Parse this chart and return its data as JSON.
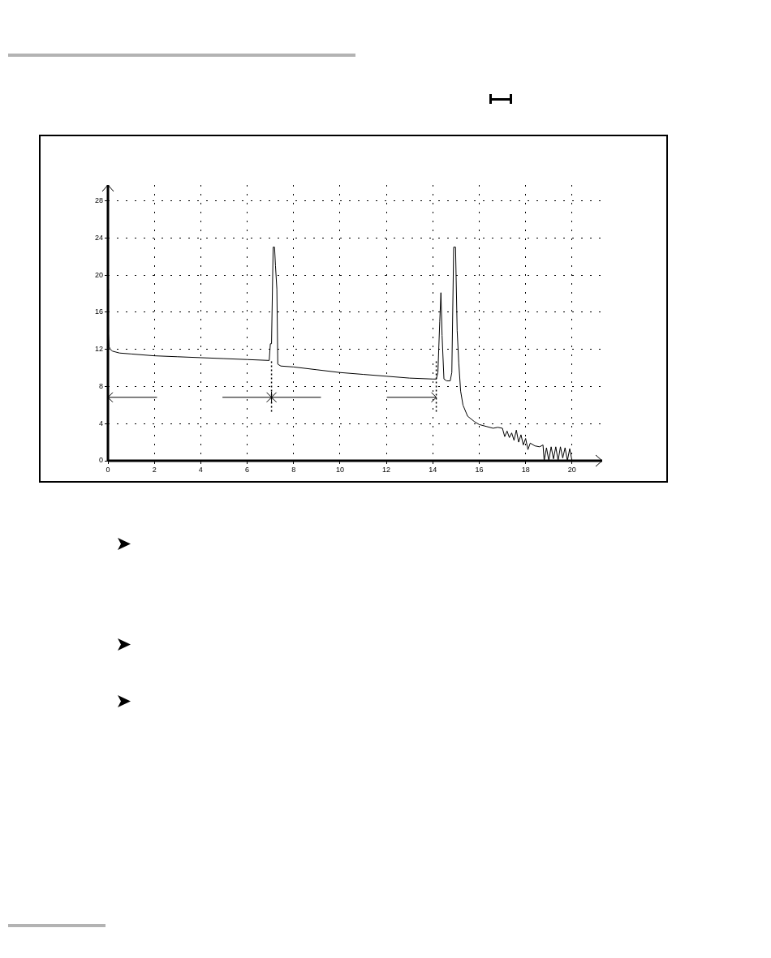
{
  "chart_data": {
    "type": "line",
    "x": [
      0,
      0.02,
      0.05,
      0.1,
      0.2,
      0.5,
      1,
      2,
      3,
      4,
      5,
      6,
      6.95,
      7.0,
      7.05,
      7.12,
      7.18,
      7.22,
      7.28,
      7.32,
      7.45,
      8,
      9,
      10,
      11,
      12,
      13,
      14,
      14.15,
      14.22,
      14.3,
      14.35,
      14.4,
      14.48,
      14.6,
      14.75,
      14.82,
      14.9,
      14.98,
      15.05,
      15.12,
      15.2,
      15.3,
      15.5,
      15.8,
      16,
      16.3,
      16.6,
      16.8,
      17.0,
      17.1,
      17.2,
      17.3,
      17.4,
      17.5,
      17.6,
      17.7,
      17.8,
      17.9,
      18.0,
      18.1,
      18.2,
      18.4,
      18.6,
      18.75,
      18.8,
      18.9,
      19.0,
      19.1,
      19.2,
      19.3,
      19.4,
      19.5,
      19.6,
      19.7,
      19.8,
      19.9,
      20
    ],
    "series": [
      {
        "color": "#000000",
        "values": [
          18.5,
          13.8,
          12.3,
          12.0,
          11.8,
          11.6,
          11.5,
          11.3,
          11.2,
          11.1,
          11.0,
          10.9,
          10.8,
          12.6,
          12.6,
          23,
          23,
          21,
          18.5,
          10.4,
          10.2,
          10.1,
          9.8,
          9.5,
          9.3,
          9.1,
          8.9,
          8.8,
          8.8,
          9.5,
          15,
          18.1,
          13.5,
          8.8,
          8.6,
          8.6,
          9.5,
          23,
          23,
          14,
          10.5,
          7.5,
          6.0,
          4.8,
          4.2,
          3.9,
          3.7,
          3.5,
          3.6,
          3.5,
          2.6,
          3.2,
          2.5,
          3.0,
          2.2,
          3.3,
          2.0,
          2.8,
          1.7,
          2.4,
          1.2,
          1.9,
          1.6,
          1.5,
          1.7,
          0,
          1.4,
          0,
          1.5,
          0.2,
          1.5,
          0,
          1.5,
          0.3,
          1.4,
          0,
          1.3,
          0
        ]
      }
    ],
    "xlim": [
      0,
      21.3
    ],
    "xticks": [
      0,
      2,
      4,
      6,
      8,
      10,
      12,
      14,
      16,
      18,
      20
    ],
    "ylim": [
      0,
      29.7
    ],
    "yticks": [
      0,
      4,
      8,
      12,
      16,
      20,
      24,
      28
    ],
    "ref_lines": [
      {
        "axis": "x",
        "value": 7.05,
        "line_style": "dotted",
        "color": "#000000"
      },
      {
        "axis": "x",
        "value": 14.15,
        "line_style": "dotted",
        "color": "#000000"
      }
    ],
    "grid": true,
    "legend": false,
    "marker": "none",
    "line_style": "solid"
  }
}
